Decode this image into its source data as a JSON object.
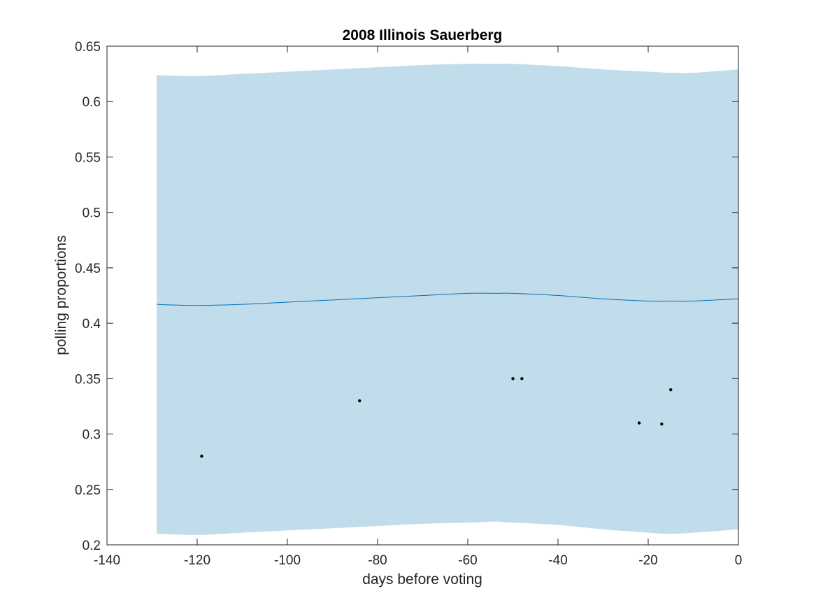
{
  "chart_data": {
    "type": "line",
    "title": "2008 Illinois Sauerberg",
    "xlabel": "days before voting",
    "ylabel": "polling proportions",
    "xlim": [
      -140,
      0
    ],
    "ylim": [
      0.2,
      0.65
    ],
    "xticks": [
      -140,
      -120,
      -100,
      -80,
      -60,
      -40,
      -20,
      0
    ],
    "xtick_labels": [
      "-140",
      "-120",
      "-100",
      "-80",
      "-60",
      "-40",
      "-20",
      "0"
    ],
    "yticks": [
      0.2,
      0.25,
      0.3,
      0.35,
      0.4,
      0.45,
      0.5,
      0.55,
      0.6,
      0.65
    ],
    "ytick_labels": [
      "0.2",
      "0.25",
      "0.3",
      "0.35",
      "0.4",
      "0.45",
      "0.5",
      "0.55",
      "0.6",
      "0.65"
    ],
    "grid": false,
    "colors": {
      "band": "#c1dcea",
      "line": "#0072bd",
      "points": "#000000",
      "axes": "#262626"
    },
    "series": [
      {
        "kind": "band",
        "x": [
          -129,
          -120,
          -110,
          -100,
          -90,
          -80,
          -70,
          -60,
          -54,
          -50,
          -40,
          -30,
          -20,
          -15,
          -10,
          0
        ],
        "lower": [
          0.21,
          0.209,
          0.211,
          0.213,
          0.215,
          0.217,
          0.219,
          0.22,
          0.221,
          0.22,
          0.218,
          0.214,
          0.211,
          0.21,
          0.211,
          0.214
        ],
        "upper": [
          0.624,
          0.623,
          0.625,
          0.627,
          0.629,
          0.631,
          0.633,
          0.634,
          0.634,
          0.634,
          0.632,
          0.629,
          0.627,
          0.626,
          0.626,
          0.629
        ]
      },
      {
        "kind": "line",
        "x": [
          -129,
          -120,
          -110,
          -100,
          -90,
          -80,
          -70,
          -60,
          -54,
          -50,
          -40,
          -30,
          -20,
          -15,
          -10,
          0
        ],
        "y": [
          0.417,
          0.416,
          0.417,
          0.419,
          0.421,
          0.423,
          0.425,
          0.427,
          0.427,
          0.427,
          0.425,
          0.422,
          0.42,
          0.42,
          0.42,
          0.422
        ]
      },
      {
        "kind": "scatter",
        "x": [
          -119,
          -84,
          -50,
          -48,
          -22,
          -17,
          -15
        ],
        "y": [
          0.28,
          0.33,
          0.35,
          0.35,
          0.31,
          0.309,
          0.34
        ]
      }
    ]
  }
}
